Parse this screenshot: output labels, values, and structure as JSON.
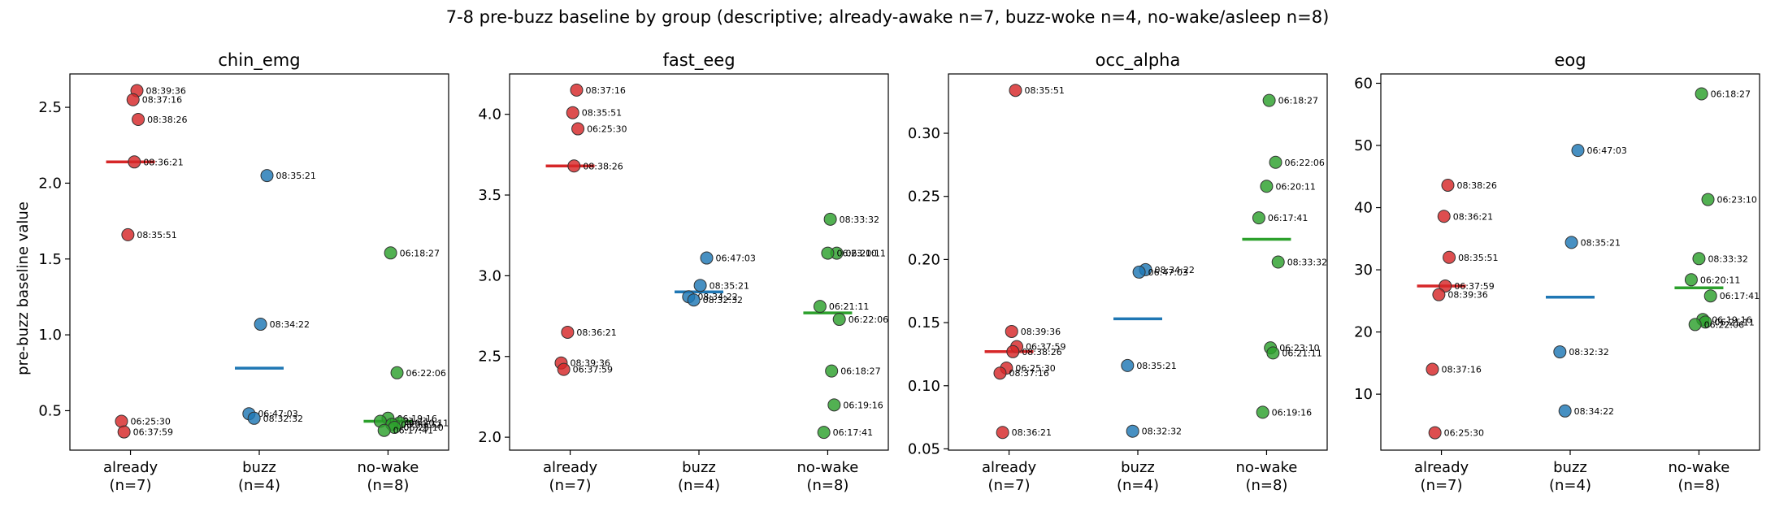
{
  "figure": {
    "suptitle": "7-8 pre-buzz baseline by group (descriptive; already-awake n=7, buzz-woke n=4, no-wake/asleep n=8)",
    "ylabel": "pre-buzz baseline value"
  },
  "colors": {
    "already": "#d62728",
    "buzz": "#1f77b4",
    "nowake": "#2ca02c",
    "edge": "#333333"
  },
  "chart_data": [
    {
      "type": "scatter",
      "title": "chin_emg",
      "categories": [
        "already\n(n=7)",
        "buzz\n(n=4)",
        "no-wake\n(n=8)"
      ],
      "ylim": [
        0.24,
        2.72
      ],
      "yticks": [
        0.5,
        1.0,
        1.5,
        2.0,
        2.5
      ],
      "ytick_labels": [
        "0.5",
        "1.0",
        "1.5",
        "2.0",
        "2.5"
      ],
      "grid": false,
      "series": [
        {
          "group": 0,
          "median": 2.14,
          "points": [
            {
              "y": 2.61,
              "label": "08:39:36"
            },
            {
              "y": 2.55,
              "label": "08:37:16"
            },
            {
              "y": 2.42,
              "label": "08:38:26"
            },
            {
              "y": 2.14,
              "label": "08:36:21"
            },
            {
              "y": 1.66,
              "label": "08:35:51"
            },
            {
              "y": 0.43,
              "label": "06:25:30"
            },
            {
              "y": 0.36,
              "label": "06:37:59"
            }
          ]
        },
        {
          "group": 1,
          "median": 0.78,
          "points": [
            {
              "y": 2.05,
              "label": "08:35:21"
            },
            {
              "y": 1.07,
              "label": "08:34:22"
            },
            {
              "y": 0.48,
              "label": "06:47:03"
            },
            {
              "y": 0.45,
              "label": "08:32:32"
            }
          ]
        },
        {
          "group": 2,
          "median": 0.43,
          "points": [
            {
              "y": 1.54,
              "label": "06:18:27"
            },
            {
              "y": 0.75,
              "label": "06:22:06"
            },
            {
              "y": 0.45,
              "label": "06:19:16"
            },
            {
              "y": 0.43,
              "label": "06:21:11"
            },
            {
              "y": 0.42,
              "label": "06:20:11"
            },
            {
              "y": 0.41,
              "label": "08:33:32"
            },
            {
              "y": 0.39,
              "label": "06:23:10"
            },
            {
              "y": 0.37,
              "label": "06:17:41"
            }
          ]
        }
      ]
    },
    {
      "type": "scatter",
      "title": "fast_eeg",
      "categories": [
        "already\n(n=7)",
        "buzz\n(n=4)",
        "no-wake\n(n=8)"
      ],
      "ylim": [
        1.92,
        4.25
      ],
      "yticks": [
        2.0,
        2.5,
        3.0,
        3.5,
        4.0
      ],
      "ytick_labels": [
        "2.0",
        "2.5",
        "3.0",
        "3.5",
        "4.0"
      ],
      "grid": false,
      "series": [
        {
          "group": 0,
          "median": 3.68,
          "points": [
            {
              "y": 4.15,
              "label": "08:37:16"
            },
            {
              "y": 4.01,
              "label": "08:35:51"
            },
            {
              "y": 3.91,
              "label": "06:25:30"
            },
            {
              "y": 3.68,
              "label": "08:38:26"
            },
            {
              "y": 2.65,
              "label": "08:36:21"
            },
            {
              "y": 2.46,
              "label": "08:39:36"
            },
            {
              "y": 2.42,
              "label": "06:37:59"
            }
          ]
        },
        {
          "group": 1,
          "median": 2.9,
          "points": [
            {
              "y": 3.11,
              "label": "06:47:03"
            },
            {
              "y": 2.94,
              "label": "08:35:21"
            },
            {
              "y": 2.87,
              "label": "08:34:22"
            },
            {
              "y": 2.85,
              "label": "08:32:32"
            }
          ]
        },
        {
          "group": 2,
          "median": 2.77,
          "points": [
            {
              "y": 3.35,
              "label": "08:33:32"
            },
            {
              "y": 3.14,
              "label": "06:20:11"
            },
            {
              "y": 3.14,
              "label": "06:23:10"
            },
            {
              "y": 2.81,
              "label": "06:21:11"
            },
            {
              "y": 2.73,
              "label": "06:22:06"
            },
            {
              "y": 2.41,
              "label": "06:18:27"
            },
            {
              "y": 2.2,
              "label": "06:19:16"
            },
            {
              "y": 2.03,
              "label": "06:17:41"
            }
          ]
        }
      ]
    },
    {
      "type": "scatter",
      "title": "occ_alpha",
      "categories": [
        "already\n(n=7)",
        "buzz\n(n=4)",
        "no-wake\n(n=8)"
      ],
      "ylim": [
        0.049,
        0.347
      ],
      "yticks": [
        0.05,
        0.1,
        0.15,
        0.2,
        0.25,
        0.3
      ],
      "ytick_labels": [
        "0.05",
        "0.10",
        "0.15",
        "0.20",
        "0.25",
        "0.30"
      ],
      "grid": false,
      "series": [
        {
          "group": 0,
          "median": 0.127,
          "points": [
            {
              "y": 0.334,
              "label": "08:35:51"
            },
            {
              "y": 0.143,
              "label": "08:39:36"
            },
            {
              "y": 0.131,
              "label": "06:37:59"
            },
            {
              "y": 0.127,
              "label": "08:38:26"
            },
            {
              "y": 0.114,
              "label": "06:25:30"
            },
            {
              "y": 0.11,
              "label": "08:37:16"
            },
            {
              "y": 0.063,
              "label": "08:36:21"
            }
          ]
        },
        {
          "group": 1,
          "median": 0.153,
          "points": [
            {
              "y": 0.192,
              "label": "08:34:22"
            },
            {
              "y": 0.19,
              "label": "06:47:03"
            },
            {
              "y": 0.116,
              "label": "08:35:21"
            },
            {
              "y": 0.064,
              "label": "08:32:32"
            }
          ]
        },
        {
          "group": 2,
          "median": 0.216,
          "points": [
            {
              "y": 0.326,
              "label": "06:18:27"
            },
            {
              "y": 0.277,
              "label": "06:22:06"
            },
            {
              "y": 0.258,
              "label": "06:20:11"
            },
            {
              "y": 0.233,
              "label": "06:17:41"
            },
            {
              "y": 0.198,
              "label": "08:33:32"
            },
            {
              "y": 0.13,
              "label": "06:23:10"
            },
            {
              "y": 0.126,
              "label": "06:21:11"
            },
            {
              "y": 0.079,
              "label": "06:19:16"
            }
          ]
        }
      ]
    },
    {
      "type": "scatter",
      "title": "eog",
      "categories": [
        "already\n(n=7)",
        "buzz\n(n=4)",
        "no-wake\n(n=8)"
      ],
      "ylim": [
        1.0,
        61.5
      ],
      "yticks": [
        10,
        20,
        30,
        40,
        50,
        60
      ],
      "ytick_labels": [
        "10",
        "20",
        "30",
        "40",
        "50",
        "60"
      ],
      "grid": false,
      "series": [
        {
          "group": 0,
          "median": 27.4,
          "points": [
            {
              "y": 43.6,
              "label": "08:38:26"
            },
            {
              "y": 38.6,
              "label": "08:36:21"
            },
            {
              "y": 32.0,
              "label": "08:35:51"
            },
            {
              "y": 27.4,
              "label": "06:37:59"
            },
            {
              "y": 26.0,
              "label": "08:39:36"
            },
            {
              "y": 14.0,
              "label": "08:37:16"
            },
            {
              "y": 3.8,
              "label": "06:25:30"
            }
          ]
        },
        {
          "group": 1,
          "median": 25.6,
          "points": [
            {
              "y": 49.2,
              "label": "06:47:03"
            },
            {
              "y": 34.4,
              "label": "08:35:21"
            },
            {
              "y": 16.8,
              "label": "08:32:32"
            },
            {
              "y": 7.3,
              "label": "08:34:22"
            }
          ]
        },
        {
          "group": 2,
          "median": 27.1,
          "points": [
            {
              "y": 58.3,
              "label": "06:18:27"
            },
            {
              "y": 41.3,
              "label": "06:23:10"
            },
            {
              "y": 31.8,
              "label": "08:33:32"
            },
            {
              "y": 28.4,
              "label": "06:20:11"
            },
            {
              "y": 25.8,
              "label": "06:17:41"
            },
            {
              "y": 22.0,
              "label": "06:19:16"
            },
            {
              "y": 21.6,
              "label": "06:21:11"
            },
            {
              "y": 21.2,
              "label": "06:22:06"
            }
          ]
        }
      ]
    }
  ]
}
